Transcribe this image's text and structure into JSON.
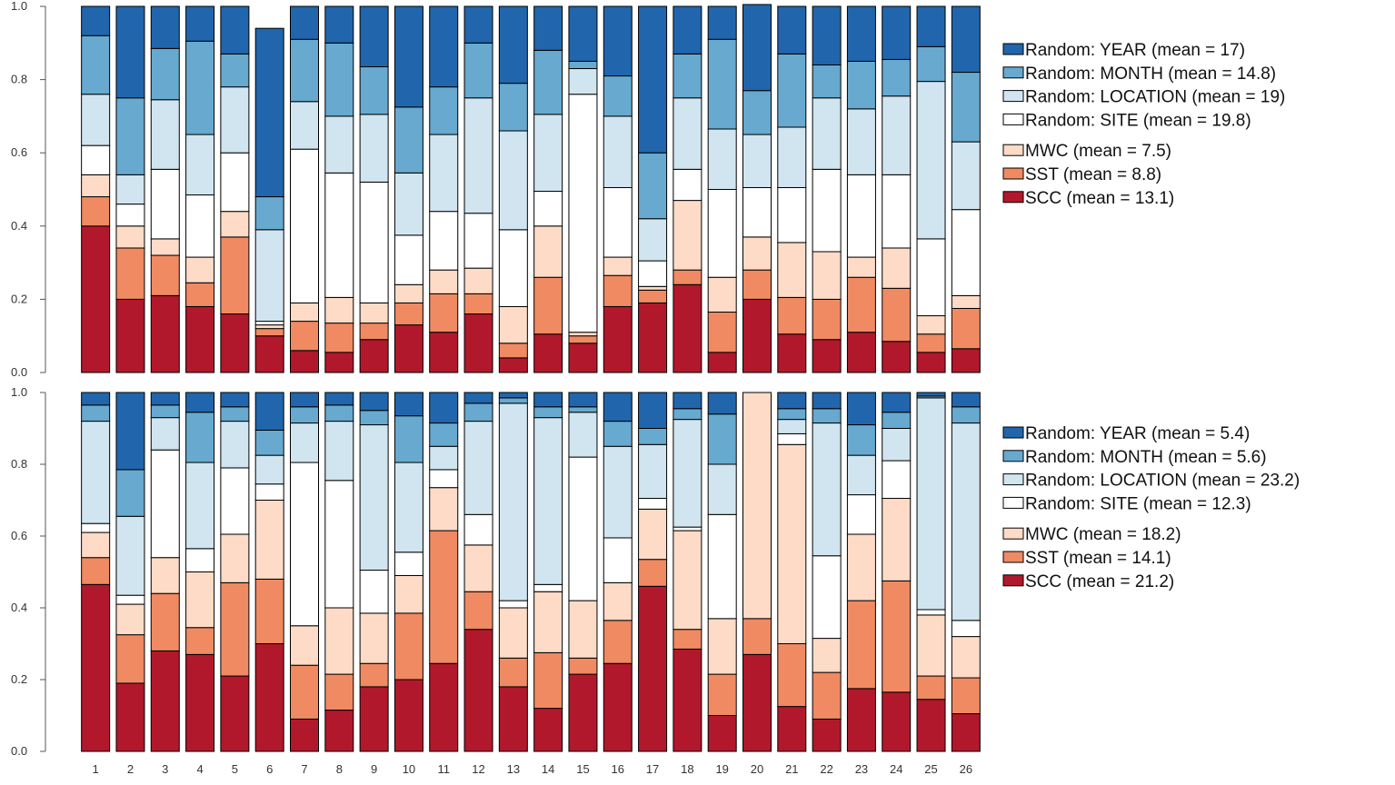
{
  "colors": {
    "SCC": "#b2182b",
    "SST": "#ef8a62",
    "MWC": "#fddbc7",
    "SITE": "#ffffff",
    "LOCATION": "#d1e5f0",
    "MONTH": "#67a9cf",
    "YEAR": "#2166ac"
  },
  "chart_data": [
    {
      "type": "bar",
      "stacked": true,
      "categories": [
        "1",
        "2",
        "3",
        "4",
        "5",
        "6",
        "7",
        "8",
        "9",
        "10",
        "11",
        "12",
        "13",
        "14",
        "15",
        "16",
        "17",
        "18",
        "19",
        "20",
        "21",
        "22",
        "23",
        "24",
        "25",
        "26"
      ],
      "ylim": [
        0,
        1
      ],
      "yticks": [
        "0.0",
        "0.2",
        "0.4",
        "0.6",
        "0.8",
        "1.0"
      ],
      "legend": [
        {
          "key": "YEAR",
          "label": "Random: YEAR (mean = 17)"
        },
        {
          "key": "MONTH",
          "label": "Random: MONTH (mean = 14.8)"
        },
        {
          "key": "LOCATION",
          "label": "Random: LOCATION (mean = 19)"
        },
        {
          "key": "SITE",
          "label": "Random: SITE (mean = 19.8)"
        },
        {
          "key": "MWC",
          "label": "MWC (mean = 7.5)"
        },
        {
          "key": "SST",
          "label": "SST (mean = 8.8)"
        },
        {
          "key": "SCC",
          "label": "SCC (mean = 13.1)"
        }
      ],
      "series": [
        {
          "name": "SCC",
          "values": [
            0.4,
            0.2,
            0.21,
            0.18,
            0.16,
            0.1,
            0.06,
            0.055,
            0.09,
            0.13,
            0.11,
            0.16,
            0.04,
            0.105,
            0.08,
            0.18,
            0.19,
            0.24,
            0.055,
            0.2,
            0.105,
            0.09,
            0.11,
            0.085,
            0.055,
            0.065
          ]
        },
        {
          "name": "SST",
          "values": [
            0.08,
            0.14,
            0.11,
            0.065,
            0.21,
            0.02,
            0.08,
            0.08,
            0.045,
            0.06,
            0.105,
            0.055,
            0.04,
            0.155,
            0.02,
            0.085,
            0.035,
            0.04,
            0.11,
            0.08,
            0.1,
            0.11,
            0.15,
            0.145,
            0.05,
            0.11
          ]
        },
        {
          "name": "MWC",
          "values": [
            0.06,
            0.06,
            0.045,
            0.07,
            0.07,
            0.01,
            0.05,
            0.07,
            0.055,
            0.05,
            0.065,
            0.07,
            0.1,
            0.14,
            0.01,
            0.05,
            0.01,
            0.19,
            0.095,
            0.09,
            0.15,
            0.13,
            0.055,
            0.11,
            0.05,
            0.035
          ]
        },
        {
          "name": "SITE",
          "values": [
            0.08,
            0.06,
            0.19,
            0.17,
            0.16,
            0.01,
            0.42,
            0.34,
            0.33,
            0.135,
            0.16,
            0.15,
            0.21,
            0.095,
            0.65,
            0.19,
            0.07,
            0.085,
            0.24,
            0.135,
            0.15,
            0.225,
            0.225,
            0.2,
            0.21,
            0.235
          ]
        },
        {
          "name": "LOCATION",
          "values": [
            0.14,
            0.08,
            0.19,
            0.165,
            0.18,
            0.25,
            0.13,
            0.155,
            0.185,
            0.17,
            0.21,
            0.315,
            0.27,
            0.21,
            0.07,
            0.195,
            0.115,
            0.195,
            0.165,
            0.145,
            0.165,
            0.195,
            0.18,
            0.215,
            0.43,
            0.185
          ]
        },
        {
          "name": "MONTH",
          "values": [
            0.16,
            0.21,
            0.14,
            0.255,
            0.09,
            0.09,
            0.17,
            0.2,
            0.13,
            0.18,
            0.13,
            0.15,
            0.13,
            0.175,
            0.02,
            0.11,
            0.18,
            0.12,
            0.245,
            0.12,
            0.2,
            0.09,
            0.13,
            0.1,
            0.095,
            0.19
          ]
        },
        {
          "name": "YEAR",
          "values": [
            0.08,
            0.25,
            0.115,
            0.095,
            0.13,
            0.46,
            0.09,
            0.1,
            0.165,
            0.275,
            0.22,
            0.1,
            0.21,
            0.12,
            0.15,
            0.19,
            0.4,
            0.13,
            0.09,
            0.235,
            0.13,
            0.16,
            0.15,
            0.145,
            0.11,
            0.18
          ]
        }
      ]
    },
    {
      "type": "bar",
      "stacked": true,
      "categories": [
        "1",
        "2",
        "3",
        "4",
        "5",
        "6",
        "7",
        "8",
        "9",
        "10",
        "11",
        "12",
        "13",
        "14",
        "15",
        "16",
        "17",
        "18",
        "19",
        "20",
        "21",
        "22",
        "23",
        "24",
        "25",
        "26"
      ],
      "ylim": [
        0,
        1
      ],
      "yticks": [
        "0.0",
        "0.2",
        "0.4",
        "0.6",
        "0.8",
        "1.0"
      ],
      "legend": [
        {
          "key": "YEAR",
          "label": "Random: YEAR (mean = 5.4)"
        },
        {
          "key": "MONTH",
          "label": "Random: MONTH (mean = 5.6)"
        },
        {
          "key": "LOCATION",
          "label": "Random: LOCATION (mean = 23.2)"
        },
        {
          "key": "SITE",
          "label": "Random: SITE (mean = 12.3)"
        },
        {
          "key": "MWC",
          "label": "MWC (mean = 18.2)"
        },
        {
          "key": "SST",
          "label": "SST (mean = 14.1)"
        },
        {
          "key": "SCC",
          "label": "SCC (mean = 21.2)"
        }
      ],
      "series": [
        {
          "name": "SCC",
          "values": [
            0.465,
            0.19,
            0.28,
            0.27,
            0.21,
            0.3,
            0.09,
            0.115,
            0.18,
            0.2,
            0.245,
            0.34,
            0.18,
            0.12,
            0.215,
            0.245,
            0.46,
            0.285,
            0.1,
            0.27,
            0.125,
            0.09,
            0.175,
            0.165,
            0.145,
            0.105
          ]
        },
        {
          "name": "SST",
          "values": [
            0.075,
            0.135,
            0.16,
            0.075,
            0.26,
            0.18,
            0.15,
            0.1,
            0.065,
            0.185,
            0.37,
            0.105,
            0.08,
            0.155,
            0.045,
            0.12,
            0.075,
            0.055,
            0.115,
            0.1,
            0.175,
            0.13,
            0.245,
            0.31,
            0.065,
            0.1
          ]
        },
        {
          "name": "MWC",
          "values": [
            0.07,
            0.085,
            0.1,
            0.155,
            0.135,
            0.22,
            0.11,
            0.185,
            0.14,
            0.105,
            0.12,
            0.13,
            0.14,
            0.17,
            0.16,
            0.105,
            0.14,
            0.275,
            0.155,
            0.63,
            0.555,
            0.095,
            0.185,
            0.23,
            0.17,
            0.115
          ]
        },
        {
          "name": "SITE",
          "values": [
            0.025,
            0.025,
            0.3,
            0.065,
            0.185,
            0.045,
            0.455,
            0.355,
            0.12,
            0.065,
            0.05,
            0.085,
            0.02,
            0.02,
            0.4,
            0.125,
            0.03,
            0.01,
            0.29,
            0,
            0.03,
            0.23,
            0.11,
            0.105,
            0.015,
            0.045
          ]
        },
        {
          "name": "LOCATION",
          "values": [
            0.285,
            0.22,
            0.09,
            0.24,
            0.13,
            0.08,
            0.11,
            0.165,
            0.405,
            0.25,
            0.065,
            0.26,
            0.55,
            0.465,
            0.125,
            0.255,
            0.15,
            0.3,
            0.14,
            0,
            0.04,
            0.37,
            0.11,
            0.09,
            0.59,
            0.55
          ]
        },
        {
          "name": "MONTH",
          "values": [
            0.045,
            0.13,
            0.035,
            0.14,
            0.04,
            0.07,
            0.045,
            0.045,
            0.04,
            0.13,
            0.065,
            0.05,
            0.015,
            0.03,
            0.015,
            0.07,
            0.045,
            0.03,
            0.14,
            0,
            0.03,
            0.04,
            0.085,
            0.045,
            0.005,
            0.045
          ]
        },
        {
          "name": "YEAR",
          "values": [
            0.035,
            0.215,
            0.035,
            0.055,
            0.04,
            0.105,
            0.04,
            0.035,
            0.05,
            0.065,
            0.085,
            0.03,
            0.015,
            0.04,
            0.04,
            0.08,
            0.1,
            0.045,
            0.06,
            0,
            0.045,
            0.045,
            0.09,
            0.055,
            0.01,
            0.04
          ]
        }
      ]
    }
  ]
}
